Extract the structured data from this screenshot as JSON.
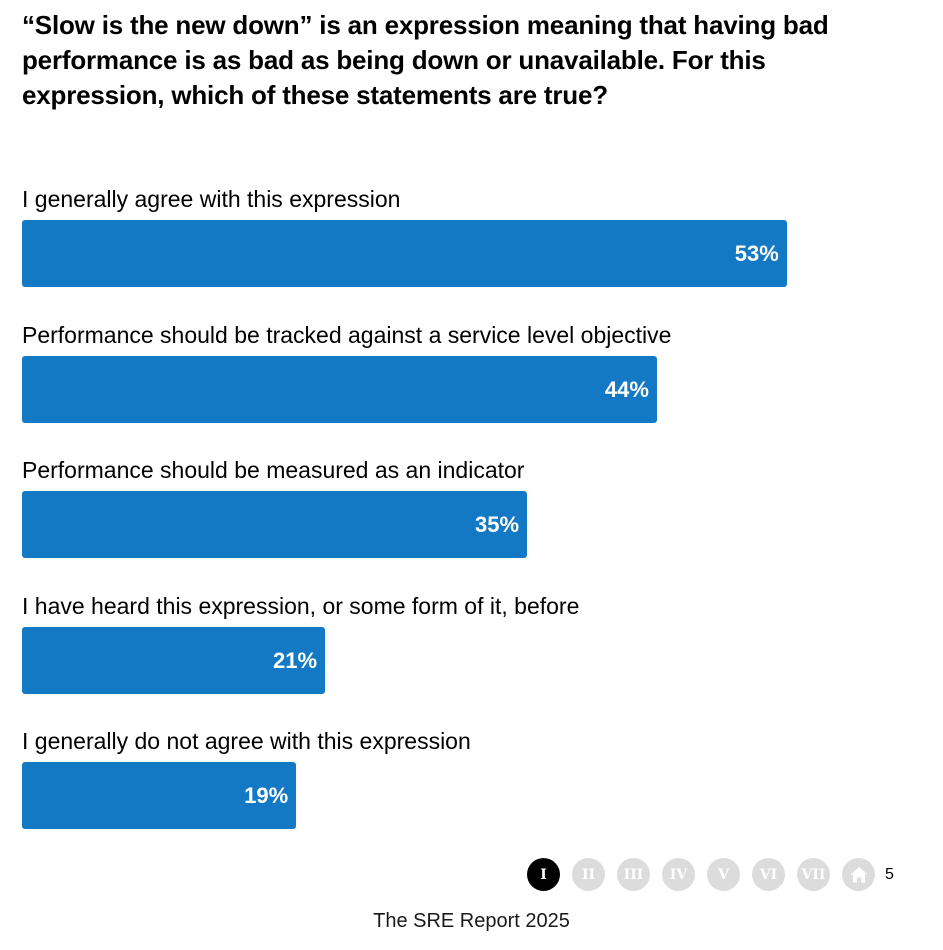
{
  "question": "“Slow is the new down” is an expression meaning that having bad performance is as bad as being down or unavailable. For this expression, which of these statements are true?",
  "chart_data": {
    "type": "bar",
    "orientation": "horizontal",
    "categories": [
      "I generally agree with this expression",
      "Performance should be tracked against a service level objective",
      "Performance should be measured as an indicator",
      "I have heard this expression, or some form of it, before",
      "I generally do not agree with this expression"
    ],
    "values": [
      53,
      44,
      35,
      21,
      19
    ],
    "value_labels": [
      "53%",
      "44%",
      "35%",
      "21%",
      "19%"
    ],
    "unit": "%",
    "xlim": [
      0,
      100
    ],
    "grid": false,
    "bar_color": "#1479c4",
    "value_label_color": "#ffffff"
  },
  "navigation": {
    "items": [
      {
        "label": "I",
        "active": true
      },
      {
        "label": "II",
        "active": false
      },
      {
        "label": "III",
        "active": false
      },
      {
        "label": "IV",
        "active": false
      },
      {
        "label": "V",
        "active": false
      },
      {
        "label": "VI",
        "active": false
      },
      {
        "label": "VII",
        "active": false
      }
    ],
    "home_icon": "home-icon",
    "page_number": "5",
    "active_color": "#000000",
    "inactive_color": "#dcdcdc"
  },
  "footer": "The SRE Report 2025"
}
